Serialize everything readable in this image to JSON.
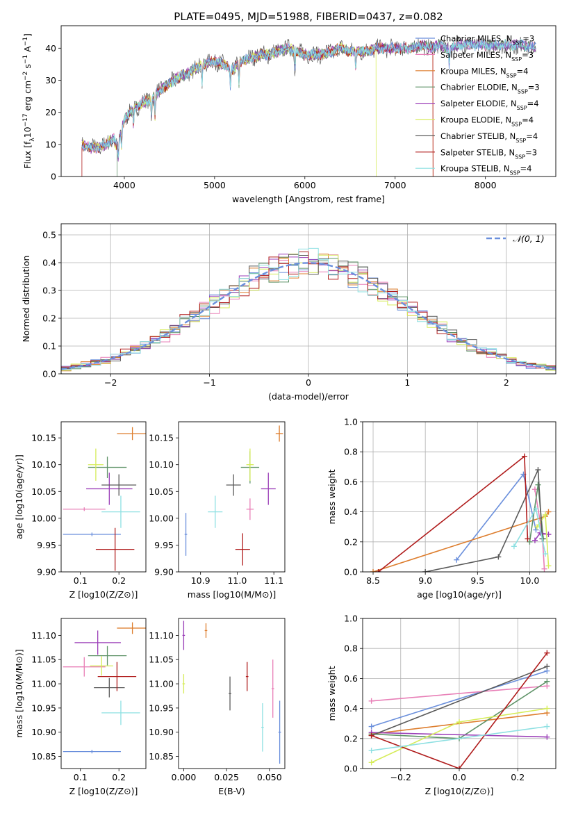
{
  "page": {
    "title": "PLATE=0495, MJD=51988, FIBERID=0437, z=0.082"
  },
  "colors": {
    "chabrier_miles": "#6a8fdc",
    "salpeter_miles": "#e87fb7",
    "kroupa_miles": "#dd7d2d",
    "chabrier_elodie": "#5f9368",
    "salpeter_elodie": "#9b3fb8",
    "kroupa_elodie": "#d6ec5a",
    "chabrier_stelib": "#5a5a5a",
    "salpeter_stelib": "#b01c1c",
    "kroupa_stelib": "#8ee0e2"
  },
  "chart_data": [
    {
      "id": "spectrum",
      "type": "line",
      "title": "PLATE=0495, MJD=51988, FIBERID=0437, z=0.082",
      "xlabel": "wavelength [Angstrom, rest frame]",
      "ylabel_parts": [
        "Flux [f",
        "λ",
        "10",
        "−17",
        " erg cm",
        "−2",
        " s",
        "−1",
        " A",
        "−1",
        "]"
      ],
      "xlim": [
        3300,
        8780
      ],
      "ylim": [
        0,
        47
      ],
      "xticks": [
        4000,
        5000,
        6000,
        7000,
        8000
      ],
      "yticks": [
        0,
        10,
        20,
        30,
        40
      ],
      "legend_position": "right",
      "legend": [
        {
          "label": "Chabrier MILES, N",
          "sub": "SSP",
          "tail": "=3",
          "color_key": "chabrier_miles"
        },
        {
          "label": "Salpeter MILES, N",
          "sub": "SSP",
          "tail": "=3",
          "color_key": "salpeter_miles"
        },
        {
          "label": "Kroupa MILES, N",
          "sub": "SSP",
          "tail": "=4",
          "color_key": "kroupa_miles"
        },
        {
          "label": "Chabrier ELODIE, N",
          "sub": "SSP",
          "tail": "=3",
          "color_key": "chabrier_elodie"
        },
        {
          "label": "Salpeter ELODIE, N",
          "sub": "SSP",
          "tail": "=4",
          "color_key": "salpeter_elodie"
        },
        {
          "label": "Kroupa ELODIE, N",
          "sub": "SSP",
          "tail": "=4",
          "color_key": "kroupa_elodie"
        },
        {
          "label": "Chabrier STELIB, N",
          "sub": "SSP",
          "tail": "=4",
          "color_key": "chabrier_stelib"
        },
        {
          "label": "Salpeter STELIB, N",
          "sub": "SSP",
          "tail": "=3",
          "color_key": "salpeter_stelib"
        },
        {
          "label": "Kroupa STELIB, N",
          "sub": "SSP",
          "tail": "=4",
          "color_key": "kroupa_stelib"
        }
      ],
      "continuum": [
        [
          3530,
          10
        ],
        [
          3600,
          9
        ],
        [
          3700,
          9
        ],
        [
          3800,
          10
        ],
        [
          3880,
          12
        ],
        [
          3920,
          9
        ],
        [
          4000,
          18
        ],
        [
          4100,
          21
        ],
        [
          4200,
          23
        ],
        [
          4300,
          24
        ],
        [
          4400,
          27
        ],
        [
          4500,
          29
        ],
        [
          4600,
          31
        ],
        [
          4700,
          32
        ],
        [
          4800,
          34
        ],
        [
          4900,
          35
        ],
        [
          5000,
          36
        ],
        [
          5100,
          35
        ],
        [
          5200,
          33
        ],
        [
          5300,
          36
        ],
        [
          5400,
          37
        ],
        [
          5500,
          38
        ],
        [
          5600,
          38
        ],
        [
          5700,
          39
        ],
        [
          5800,
          40
        ],
        [
          5900,
          39
        ],
        [
          6000,
          38
        ],
        [
          6100,
          38
        ],
        [
          6200,
          38
        ],
        [
          6300,
          39
        ],
        [
          6400,
          40
        ],
        [
          6500,
          39
        ],
        [
          6600,
          39
        ],
        [
          6700,
          39
        ],
        [
          6800,
          40
        ],
        [
          6900,
          40
        ],
        [
          7000,
          40
        ],
        [
          7100,
          40
        ],
        [
          7200,
          40
        ],
        [
          7300,
          41
        ],
        [
          7400,
          40
        ],
        [
          7500,
          41
        ],
        [
          7600,
          40
        ],
        [
          7700,
          41
        ],
        [
          7800,
          41
        ],
        [
          8000,
          41
        ],
        [
          8200,
          41
        ],
        [
          8400,
          41
        ],
        [
          8560,
          40
        ]
      ]
    },
    {
      "id": "residuals",
      "type": "histogram",
      "xlabel": "(data-model)/error",
      "ylabel": "Normed distribution",
      "xlim": [
        -2.5,
        2.5
      ],
      "ylim": [
        0,
        0.54
      ],
      "xticks": [
        -2,
        -1,
        0,
        1,
        2
      ],
      "xticklabels": [
        "−2",
        "−1",
        "0",
        "1",
        "2"
      ],
      "yticks": [
        0.0,
        0.1,
        0.2,
        0.3,
        0.4,
        0.5
      ],
      "grid": true,
      "legend_position": "top-right",
      "reference_curve": {
        "name": "𝒩(0, 1)",
        "color": "#6a8fdc",
        "style": "dashed"
      },
      "bin_width": 0.1
    },
    {
      "id": "age-vs-Z",
      "type": "scatter",
      "xlabel": "Z [log10(Z/Z⊙)]",
      "ylabel": "age  [log10(age/yr)]",
      "xlim": [
        0.05,
        0.27
      ],
      "ylim": [
        9.9,
        10.18
      ],
      "xticks": [
        0.1,
        0.2
      ],
      "yticks": [
        9.9,
        9.95,
        10.0,
        10.05,
        10.1,
        10.15
      ],
      "points": [
        {
          "color_key": "chabrier_miles",
          "x": 0.13,
          "y": 9.97,
          "xerr": 0.075,
          "yerr": 0.0
        },
        {
          "color_key": "salpeter_miles",
          "x": 0.11,
          "y": 10.017,
          "xerr": 0.055,
          "yerr": 0.0
        },
        {
          "color_key": "kroupa_miles",
          "x": 0.235,
          "y": 10.158,
          "xerr": 0.04,
          "yerr": 0.012
        },
        {
          "color_key": "chabrier_elodie",
          "x": 0.17,
          "y": 10.095,
          "xerr": 0.05,
          "yerr": 0.02
        },
        {
          "color_key": "salpeter_elodie",
          "x": 0.175,
          "y": 10.055,
          "xerr": 0.06,
          "yerr": 0.03
        },
        {
          "color_key": "kroupa_elodie",
          "x": 0.14,
          "y": 10.1,
          "xerr": 0.02,
          "yerr": 0.03
        },
        {
          "color_key": "chabrier_stelib",
          "x": 0.2,
          "y": 10.062,
          "xerr": 0.045,
          "yerr": 0.02
        },
        {
          "color_key": "salpeter_stelib",
          "x": 0.19,
          "y": 9.942,
          "xerr": 0.05,
          "yerr": 0.04
        },
        {
          "color_key": "kroupa_stelib",
          "x": 0.205,
          "y": 10.012,
          "xerr": 0.05,
          "yerr": 0.03
        }
      ]
    },
    {
      "id": "age-vs-mass",
      "type": "scatter",
      "xlabel": "mass [log10(M/M⊙)]",
      "ylabel": "",
      "xlim": [
        10.84,
        11.13
      ],
      "ylim": [
        9.9,
        10.18
      ],
      "xticks": [
        10.9,
        11.0,
        11.1
      ],
      "yticks": [
        9.9,
        9.95,
        10.0,
        10.05,
        10.1,
        10.15
      ],
      "points": [
        {
          "color_key": "chabrier_miles",
          "x": 10.86,
          "y": 9.97,
          "xerr": 0.0,
          "yerr": 0.04
        },
        {
          "color_key": "kroupa_stelib",
          "x": 10.94,
          "y": 10.012,
          "xerr": 0.02,
          "yerr": 0.03
        },
        {
          "color_key": "salpeter_stelib",
          "x": 11.015,
          "y": 9.942,
          "xerr": 0.02,
          "yerr": 0.03
        },
        {
          "color_key": "chabrier_stelib",
          "x": 10.99,
          "y": 10.062,
          "xerr": 0.02,
          "yerr": 0.02
        },
        {
          "color_key": "chabrier_elodie",
          "x": 11.035,
          "y": 10.095,
          "xerr": 0.025,
          "yerr": 0.03
        },
        {
          "color_key": "kroupa_elodie",
          "x": 11.035,
          "y": 10.1,
          "xerr": 0.01,
          "yerr": 0.03
        },
        {
          "color_key": "salpeter_miles",
          "x": 11.035,
          "y": 10.017,
          "xerr": 0.01,
          "yerr": 0.02
        },
        {
          "color_key": "salpeter_elodie",
          "x": 11.085,
          "y": 10.055,
          "xerr": 0.02,
          "yerr": 0.03
        },
        {
          "color_key": "kroupa_miles",
          "x": 11.115,
          "y": 10.158,
          "xerr": 0.01,
          "yerr": 0.015
        }
      ]
    },
    {
      "id": "weight-vs-age",
      "type": "line",
      "xlabel": "age  [log10(age/yr)]",
      "ylabel": "mass weight",
      "xlim": [
        8.4,
        10.25
      ],
      "ylim": [
        0,
        1.0
      ],
      "xticks": [
        8.5,
        9.0,
        9.5,
        10.0
      ],
      "yticks": [
        0.0,
        0.2,
        0.4,
        0.6,
        0.8,
        1.0
      ],
      "grid": true,
      "series": [
        {
          "color_key": "chabrier_miles",
          "points": [
            [
              9.3,
              0.08
            ],
            [
              9.94,
              0.65
            ],
            [
              10.06,
              0.28
            ]
          ]
        },
        {
          "color_key": "salpeter_miles",
          "points": [
            [
              10.05,
              0.55
            ],
            [
              10.12,
              0.25
            ],
            [
              10.14,
              0.02
            ]
          ]
        },
        {
          "color_key": "kroupa_miles",
          "points": [
            [
              8.5,
              0.0
            ],
            [
              10.15,
              0.37
            ],
            [
              10.18,
              0.4
            ]
          ]
        },
        {
          "color_key": "chabrier_elodie",
          "points": [
            [
              10.0,
              0.2
            ],
            [
              10.08,
              0.58
            ],
            [
              10.13,
              0.22
            ]
          ]
        },
        {
          "color_key": "salpeter_elodie",
          "points": [
            [
              10.05,
              0.21
            ],
            [
              10.1,
              0.26
            ],
            [
              10.18,
              0.25
            ]
          ]
        },
        {
          "color_key": "kroupa_elodie",
          "points": [
            [
              10.07,
              0.3
            ],
            [
              10.15,
              0.38
            ],
            [
              10.18,
              0.04
            ]
          ]
        },
        {
          "color_key": "chabrier_stelib",
          "points": [
            [
              9.0,
              0.0
            ],
            [
              9.7,
              0.1
            ],
            [
              10.08,
              0.68
            ],
            [
              10.12,
              0.22
            ]
          ]
        },
        {
          "color_key": "salpeter_stelib",
          "points": [
            [
              8.55,
              0.0
            ],
            [
              9.95,
              0.77
            ],
            [
              9.98,
              0.22
            ]
          ]
        },
        {
          "color_key": "kroupa_stelib",
          "points": [
            [
              9.85,
              0.17
            ],
            [
              10.06,
              0.42
            ],
            [
              10.15,
              0.12
            ]
          ]
        }
      ]
    },
    {
      "id": "mass-vs-Z",
      "type": "scatter",
      "xlabel": "Z [log10(Z/Z⊙)]",
      "ylabel": "mass [log10(M/M⊙)]",
      "xlim": [
        0.05,
        0.27
      ],
      "ylim": [
        10.825,
        11.135
      ],
      "xticks": [
        0.1,
        0.2
      ],
      "yticks": [
        10.85,
        10.9,
        10.95,
        11.0,
        11.05,
        11.1
      ],
      "points": [
        {
          "color_key": "chabrier_miles",
          "x": 0.13,
          "y": 10.86,
          "xerr": 0.075,
          "yerr": 0.0
        },
        {
          "color_key": "salpeter_miles",
          "x": 0.11,
          "y": 11.035,
          "xerr": 0.055,
          "yerr": 0.02
        },
        {
          "color_key": "kroupa_miles",
          "x": 0.235,
          "y": 11.115,
          "xerr": 0.04,
          "yerr": 0.012
        },
        {
          "color_key": "chabrier_elodie",
          "x": 0.17,
          "y": 11.058,
          "xerr": 0.05,
          "yerr": 0.02
        },
        {
          "color_key": "salpeter_elodie",
          "x": 0.145,
          "y": 11.085,
          "xerr": 0.06,
          "yerr": 0.025
        },
        {
          "color_key": "kroupa_elodie",
          "x": 0.155,
          "y": 11.037,
          "xerr": 0.03,
          "yerr": 0.02
        },
        {
          "color_key": "chabrier_stelib",
          "x": 0.175,
          "y": 10.992,
          "xerr": 0.04,
          "yerr": 0.02
        },
        {
          "color_key": "salpeter_stelib",
          "x": 0.195,
          "y": 11.015,
          "xerr": 0.05,
          "yerr": 0.03
        },
        {
          "color_key": "kroupa_stelib",
          "x": 0.205,
          "y": 10.94,
          "xerr": 0.05,
          "yerr": 0.025
        }
      ]
    },
    {
      "id": "mass-vs-ebv",
      "type": "scatter",
      "xlabel": "E(B-V)",
      "ylabel": "",
      "xlim": [
        -0.003,
        0.059
      ],
      "ylim": [
        10.825,
        11.135
      ],
      "xticks": [
        0.0,
        0.025,
        0.05
      ],
      "xticklabels": [
        "0.000",
        "0.025",
        "0.050"
      ],
      "yticks": [
        10.85,
        10.9,
        10.95,
        11.0,
        11.05,
        11.1
      ],
      "points": [
        {
          "color_key": "salpeter_elodie",
          "x": 0.0,
          "y": 11.1,
          "xerr": 0.0,
          "yerr": 0.03
        },
        {
          "color_key": "kroupa_elodie",
          "x": 0.0,
          "y": 11.0,
          "xerr": 0.0,
          "yerr": 0.02
        },
        {
          "color_key": "kroupa_miles",
          "x": 0.013,
          "y": 11.11,
          "xerr": 0.0,
          "yerr": 0.015
        },
        {
          "color_key": "chabrier_stelib",
          "x": 0.027,
          "y": 10.98,
          "xerr": 0.0,
          "yerr": 0.035
        },
        {
          "color_key": "salpeter_stelib",
          "x": 0.037,
          "y": 11.015,
          "xerr": 0.0,
          "yerr": 0.03
        },
        {
          "color_key": "kroupa_stelib",
          "x": 0.046,
          "y": 10.91,
          "xerr": 0.0,
          "yerr": 0.05
        },
        {
          "color_key": "salpeter_miles",
          "x": 0.052,
          "y": 10.99,
          "xerr": 0.0,
          "yerr": 0.06
        },
        {
          "color_key": "chabrier_miles",
          "x": 0.056,
          "y": 10.9,
          "xerr": 0.0,
          "yerr": 0.065
        }
      ]
    },
    {
      "id": "weight-vs-Z",
      "type": "line",
      "xlabel": "Z [log10(Z/Z⊙)]",
      "ylabel": "mass weight",
      "xlim": [
        -0.33,
        0.33
      ],
      "ylim": [
        0,
        1.0
      ],
      "xticks": [
        -0.2,
        0.0,
        0.2
      ],
      "xticklabels": [
        "−0.2",
        "0.0",
        "0.2"
      ],
      "yticks": [
        0.0,
        0.2,
        0.4,
        0.6,
        0.8,
        1.0
      ],
      "grid": true,
      "series": [
        {
          "color_key": "chabrier_miles",
          "points": [
            [
              -0.3,
              0.28
            ],
            [
              0.3,
              0.65
            ]
          ]
        },
        {
          "color_key": "salpeter_miles",
          "points": [
            [
              -0.3,
              0.45
            ],
            [
              0.3,
              0.55
            ]
          ]
        },
        {
          "color_key": "kroupa_miles",
          "points": [
            [
              -0.3,
              0.23
            ],
            [
              0.3,
              0.37
            ]
          ]
        },
        {
          "color_key": "chabrier_elodie",
          "points": [
            [
              -0.3,
              0.23
            ],
            [
              0.0,
              0.2
            ],
            [
              0.3,
              0.58
            ]
          ]
        },
        {
          "color_key": "salpeter_elodie",
          "points": [
            [
              -0.3,
              0.24
            ],
            [
              0.3,
              0.21
            ]
          ]
        },
        {
          "color_key": "kroupa_elodie",
          "points": [
            [
              -0.3,
              0.04
            ],
            [
              0.0,
              0.31
            ],
            [
              0.3,
              0.4
            ]
          ]
        },
        {
          "color_key": "chabrier_stelib",
          "points": [
            [
              -0.3,
              0.22
            ],
            [
              0.3,
              0.68
            ]
          ]
        },
        {
          "color_key": "salpeter_stelib",
          "points": [
            [
              -0.3,
              0.22
            ],
            [
              0.0,
              0.0
            ],
            [
              0.3,
              0.77
            ]
          ]
        },
        {
          "color_key": "kroupa_stelib",
          "points": [
            [
              -0.3,
              0.12
            ],
            [
              0.3,
              0.28
            ]
          ]
        }
      ]
    }
  ]
}
